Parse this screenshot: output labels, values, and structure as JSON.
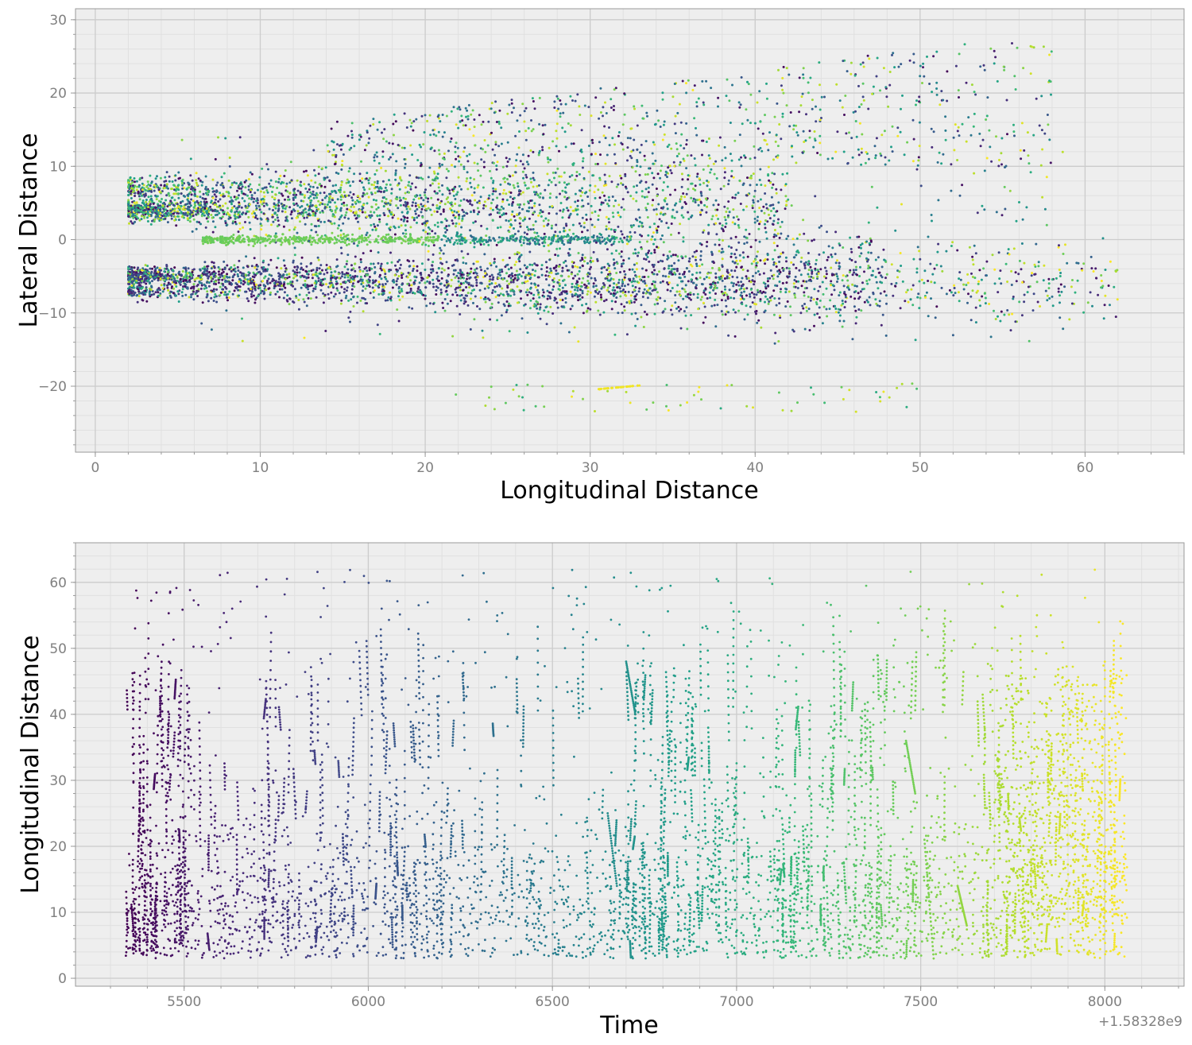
{
  "colors": {
    "plot_background": "#eeeeee",
    "grid_major": "#cccccc",
    "grid_minor": "#e0e0e0",
    "axes_edge": "#999999",
    "tick_label": "#808080",
    "colormap": "viridis"
  },
  "chart_data": [
    {
      "type": "scatter",
      "title": "",
      "xlabel": "Longitudinal Distance",
      "ylabel": "Lateral Distance",
      "xlim": [
        -1.2,
        66
      ],
      "ylim": [
        -29,
        31.5
      ],
      "xticks": [
        0,
        10,
        20,
        30,
        40,
        50,
        60
      ],
      "yticks": [
        -20,
        -10,
        0,
        10,
        20,
        30
      ],
      "xtick_labels": [
        "0",
        "10",
        "20",
        "30",
        "40",
        "50",
        "60"
      ],
      "ytick_labels": [
        "−20",
        "−10",
        "0",
        "10",
        "20",
        "30"
      ],
      "grid": true,
      "legend": "none",
      "color_encoding": "time (viridis, dark purple = earliest, yellow = latest)",
      "clusters": [
        {
          "name": "left lane band",
          "x_range": [
            2,
            42
          ],
          "y_center": 5,
          "y_spread_start": 1,
          "y_spread_end": 6,
          "density": "high"
        },
        {
          "name": "center band",
          "x_range": [
            7,
            32
          ],
          "y_center": 0,
          "y_spread_start": 0.3,
          "y_spread_end": 0.5,
          "density": "high"
        },
        {
          "name": "right lane band",
          "x_range": [
            2,
            48
          ],
          "y_center": -5,
          "y_spread_start": 1,
          "y_spread_end": 5,
          "density": "high"
        },
        {
          "name": "upper far band",
          "x_range": [
            15,
            58
          ],
          "y_center": 14,
          "y_spread_start": 4,
          "y_spread_end": 8,
          "density": "low"
        },
        {
          "name": "lower far band",
          "x_range": [
            25,
            61
          ],
          "y_center": -6,
          "y_spread_start": 3,
          "y_spread_end": 4,
          "density": "medium"
        },
        {
          "name": "outliers low",
          "x_range": [
            20,
            50
          ],
          "y_center": -21,
          "y_spread_start": 2,
          "y_spread_end": 3,
          "density": "very low"
        }
      ],
      "x_extent": [
        1.9,
        63
      ],
      "y_extent": [
        -26.3,
        28.7
      ]
    },
    {
      "type": "scatter",
      "title": "",
      "xlabel": "Time",
      "ylabel": "Longitudinal Distance",
      "x_offset_label": "+1.58328e9",
      "xlim": [
        5205,
        8215
      ],
      "ylim": [
        -1.2,
        66
      ],
      "xticks": [
        5500,
        6000,
        6500,
        7000,
        7500,
        8000
      ],
      "yticks": [
        0,
        10,
        20,
        30,
        40,
        50,
        60
      ],
      "xtick_labels": [
        "5500",
        "6000",
        "6500",
        "7000",
        "7500",
        "8000"
      ],
      "ytick_labels": [
        "0",
        "10",
        "20",
        "30",
        "40",
        "50",
        "60"
      ],
      "grid": true,
      "legend": "none",
      "color_encoding": "time (viridis, dark purple = earliest, yellow = latest)",
      "x_extent": [
        5340,
        8060
      ],
      "y_extent": [
        1.9,
        63
      ],
      "typical_range": [
        3,
        40
      ],
      "dense_regions": [
        {
          "x_range": [
            5340,
            5520
          ],
          "y_range": [
            3,
            30
          ]
        },
        {
          "x_range": [
            5700,
            6200
          ],
          "y_range": [
            3,
            30
          ]
        },
        {
          "x_range": [
            6700,
            7000
          ],
          "y_range": [
            4,
            25
          ]
        },
        {
          "x_range": [
            7100,
            7500
          ],
          "y_range": [
            4,
            20
          ]
        },
        {
          "x_range": [
            7650,
            8060
          ],
          "y_range": [
            5,
            45
          ]
        }
      ]
    }
  ]
}
